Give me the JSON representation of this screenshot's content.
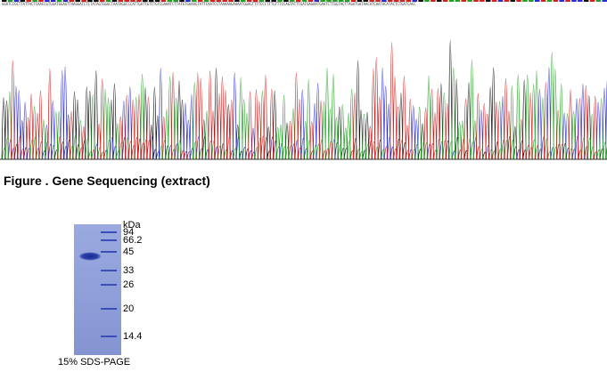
{
  "sequence_text": "GGATCCGCTTATTACTCAACCGTGGATGGAGTTAAGGATCTCTATAGTGGGCTAATAGGCCCATTGATTGTTTGTCGAAATCTTATGTGAAAGTATTCAATCCTAAAAAGAAAATGGAGTTTTCCCTTTGTTTCCAGTATTTGATGAGAATGAATCTTGGTACTTAGATGATAACATCAATACATACTCTGATCACC",
  "caption": "Figure . Gene Sequencing (extract)",
  "gel": {
    "unit_label": "kDa",
    "markers": [
      "94",
      "66.2",
      "45",
      "33",
      "26",
      "20",
      "14.4"
    ],
    "caption": "15% SDS-PAGE"
  },
  "colors": {
    "A": "#22a022",
    "C": "#2a2ad0",
    "G": "#111111",
    "T": "#d02020",
    "gel_background": "#8e9fd8",
    "gel_band": "#2c3fa8"
  }
}
